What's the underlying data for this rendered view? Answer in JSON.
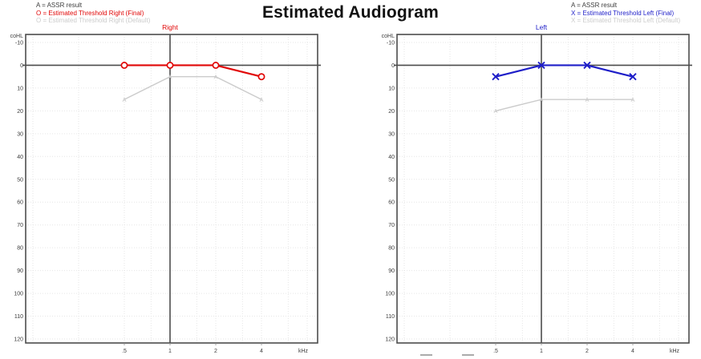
{
  "page": {
    "title": "Estimated Audiogram"
  },
  "colors": {
    "right_ear": "#e10707",
    "left_ear": "#1e1ec8",
    "default_threshold": "#cbcbcb",
    "axis_dark": "#4d4d4d",
    "grid_light": "#e6e6e6",
    "tick_text": "#3d3d3d",
    "legend_muted": "#cccccc",
    "legend_dark": "#3d3d3d"
  },
  "legends": {
    "right_panel": [
      {
        "text": "A = ASSR result",
        "color": "#3d3d3d"
      },
      {
        "text": "O = Estimated Threshold Right (Final)",
        "color": "#e10707"
      },
      {
        "text": "O = Estimated Threshold Right (Default)",
        "color": "#cccccc"
      }
    ],
    "left_panel": [
      {
        "text": "A = ASSR result",
        "color": "#3d3d3d"
      },
      {
        "text": "X = Estimated Threshold Left (Final)",
        "color": "#1e1ec8"
      },
      {
        "text": "X = Estimated Threshold Left (Default)",
        "color": "#cccccc"
      }
    ]
  },
  "chart_data": [
    {
      "type": "line",
      "ear": "right",
      "title": "Right",
      "title_color": "#e10707",
      "ylabel": "coHL",
      "x_unit": "kHz",
      "x_scale": "log2",
      "x_ticks": [
        {
          "label": ".5",
          "f": 0.5
        },
        {
          "label": "1",
          "f": 1
        },
        {
          "label": "2",
          "f": 2
        },
        {
          "label": "4",
          "f": 4
        }
      ],
      "x_gridlines_khz": [
        0.125,
        0.25,
        0.5,
        0.75,
        1,
        1.5,
        2,
        3,
        4,
        6,
        8
      ],
      "x_dark_line_khz": 1,
      "ylim": [
        -10,
        120
      ],
      "y_step": 10,
      "y_dark_line_db": 0,
      "grid": true,
      "series": [
        {
          "name": "Estimated Threshold Right (Default)",
          "marker": "A",
          "marker_meaning": "ASSR result",
          "x_khz": [
            0.5,
            1,
            2,
            4
          ],
          "values_db": [
            15,
            5,
            5,
            15
          ],
          "color": "#cbcbcb",
          "width": 1.4
        },
        {
          "name": "Estimated Threshold Right (Final)",
          "marker": "O",
          "x_khz": [
            0.5,
            1,
            2,
            4
          ],
          "values_db": [
            0,
            0,
            0,
            5
          ],
          "color": "#e10707",
          "width": 2.2
        }
      ]
    },
    {
      "type": "line",
      "ear": "left",
      "title": "Left",
      "title_color": "#1e1ec8",
      "ylabel": "coHL",
      "x_unit": "kHz",
      "x_scale": "log2",
      "x_ticks": [
        {
          "label": ".5",
          "f": 0.5
        },
        {
          "label": "1",
          "f": 1
        },
        {
          "label": "2",
          "f": 2
        },
        {
          "label": "4",
          "f": 4
        }
      ],
      "x_gridlines_khz": [
        0.125,
        0.25,
        0.5,
        0.75,
        1,
        1.5,
        2,
        3,
        4,
        6,
        8
      ],
      "x_dark_line_khz": 1,
      "ylim": [
        -10,
        120
      ],
      "y_step": 10,
      "y_dark_line_db": 0,
      "grid": true,
      "series": [
        {
          "name": "Estimated Threshold Left (Default)",
          "marker": "A",
          "marker_meaning": "ASSR result",
          "x_khz": [
            0.5,
            1,
            2,
            4
          ],
          "values_db": [
            20,
            15,
            15,
            15
          ],
          "color": "#cbcbcb",
          "width": 1.4
        },
        {
          "name": "Estimated Threshold Left (Final)",
          "marker": "X",
          "x_khz": [
            0.5,
            1,
            2,
            4
          ],
          "values_db": [
            5,
            0,
            0,
            5
          ],
          "color": "#1e1ec8",
          "width": 2.2
        }
      ]
    }
  ]
}
